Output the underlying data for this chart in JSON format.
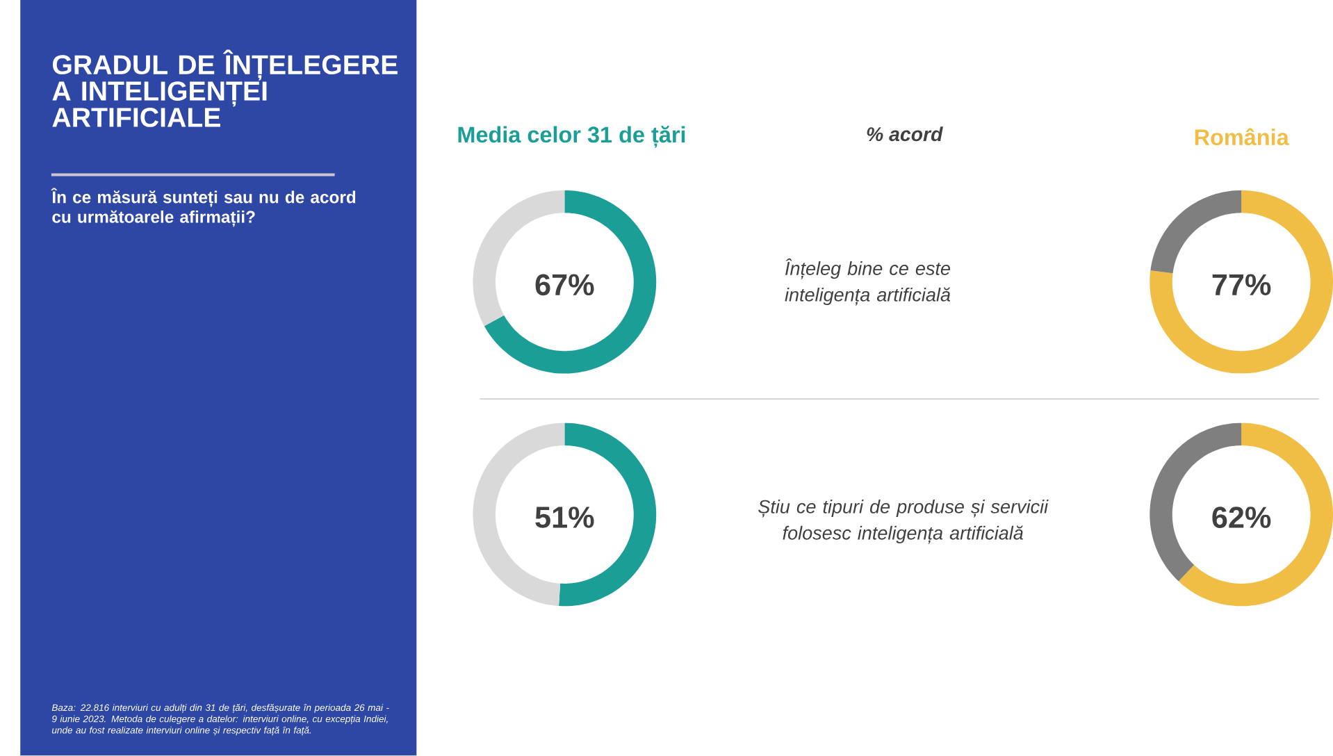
{
  "chart_data": [
    {
      "type": "other",
      "title": "GRADUL DE ÎNȚELEGERE A INTELIGENȚEI ARTIFICIALE",
      "subtitle": "În ce măsură sunteți sau nu de acord cu următoarele afirmații?",
      "annotations": [
        "Baza: 22.816 interviuri cu adulți din 31 de țări, desfășurate în perioada 26 mai - 9 iunie 2023. Metoda de culegere a datelor: interviuri online, cu excepția Indiei, unde au fost realizate interviuri online și respectiv față în față.",
        "% acord"
      ]
    },
    {
      "type": "donut",
      "title": "Media celor 31 de țări",
      "categories": [
        null,
        null
      ],
      "values": [
        67,
        33
      ],
      "colors": [
        "#1a9e96",
        "#d9d9d9"
      ],
      "value_labels": [
        "67%",
        null
      ],
      "annotations": [
        "Înțeleg bine ce este inteligența artificială"
      ]
    },
    {
      "type": "donut",
      "title": "România",
      "categories": [
        null,
        null
      ],
      "values": [
        77,
        23
      ],
      "colors": [
        "#f0bd45",
        "#7f7f7f"
      ],
      "value_labels": [
        "77%",
        null
      ]
    },
    {
      "type": "donut",
      "categories": [
        null,
        null
      ],
      "values": [
        51,
        49
      ],
      "colors": [
        "#1a9e96",
        "#d9d9d9"
      ],
      "value_labels": [
        "51%",
        null
      ],
      "annotations": [
        "Știu ce tipuri de produse și servicii folosesc inteligența artificială"
      ]
    },
    {
      "type": "donut",
      "categories": [
        null,
        null
      ],
      "values": [
        62,
        38
      ],
      "colors": [
        "#f0bd45",
        "#7f7f7f"
      ],
      "value_labels": [
        "62%",
        null
      ]
    }
  ]
}
